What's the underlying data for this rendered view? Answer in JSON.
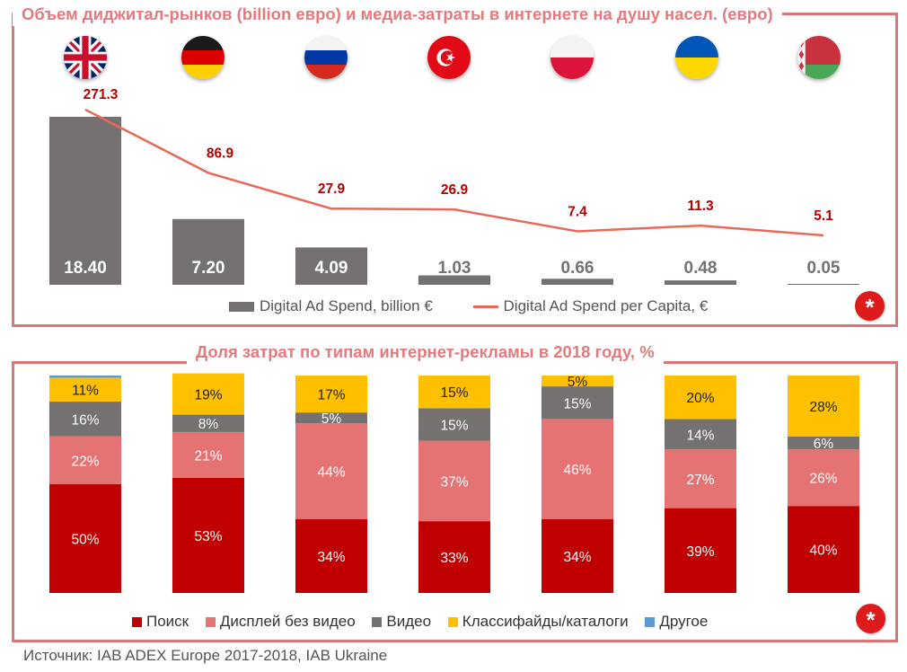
{
  "title_top": "Объем диджитал-рынков (billion евро) и медиа-затраты в интернете на душу насел. (евро)",
  "title_bottom": "Доля затрат по типам интернет-рекламы в 2018 году, %",
  "source": "Источник: IAB ADEX Europe 2017-2018, IAB Ukraine",
  "star_icon": "asterisk-icon",
  "flags": [
    "uk-flag-icon",
    "germany-flag-icon",
    "russia-flag-icon",
    "turkey-flag-icon",
    "poland-flag-icon",
    "ukraine-flag-icon",
    "belarus-flag-icon"
  ],
  "colors": {
    "bar": "#757171",
    "line": "#e8695a",
    "line_label": "#b30000",
    "poisk": "#c00000",
    "display": "#e57373",
    "video": "#767171",
    "classified": "#ffc000",
    "other": "#5b9bd5"
  },
  "chart_data": [
    {
      "type": "bar",
      "categories": [
        "",
        "",
        "",
        "",
        "",
        "",
        ""
      ],
      "series": [
        {
          "name": "Digital Ad Spend, billion €",
          "type": "bar",
          "values": [
            18.4,
            7.2,
            4.09,
            1.03,
            0.66,
            0.48,
            0.05
          ],
          "labels": [
            "18.40",
            "7.20",
            "4.09",
            "1.03",
            "0.66",
            "0.48",
            "0.05"
          ]
        },
        {
          "name": "Digital Ad Spend per Capita, €",
          "type": "line",
          "values": [
            271.3,
            86.9,
            27.9,
            26.9,
            7.4,
            11.3,
            5.1
          ],
          "labels": [
            "271.3",
            "86.9",
            "27.9",
            "26.9",
            "7.4",
            "11.3",
            "5.1"
          ]
        }
      ],
      "legend_position": "bottom"
    },
    {
      "type": "bar",
      "stacked": true,
      "categories": [
        "",
        "",
        "",
        "",
        "",
        "",
        ""
      ],
      "series": [
        {
          "name": "Поиск",
          "values": [
            50,
            53,
            34,
            33,
            34,
            39,
            40
          ],
          "labels": [
            "50%",
            "53%",
            "34%",
            "33%",
            "34%",
            "39%",
            "40%"
          ]
        },
        {
          "name": "Дисплей без видео",
          "values": [
            22,
            21,
            44,
            37,
            46,
            27,
            26
          ],
          "labels": [
            "22%",
            "21%",
            "44%",
            "37%",
            "46%",
            "27%",
            "26%"
          ]
        },
        {
          "name": "Видео",
          "values": [
            16,
            8,
            5,
            15,
            15,
            14,
            6
          ],
          "labels": [
            "16%",
            "8%",
            "5%",
            "15%",
            "15%",
            "14%",
            "6%"
          ]
        },
        {
          "name": "Классифайды/каталоги",
          "values": [
            11,
            19,
            17,
            15,
            5,
            20,
            28
          ],
          "labels": [
            "11%",
            "19%",
            "17%",
            "15%",
            "5%",
            "20%",
            "28%"
          ]
        },
        {
          "name": "Другое",
          "values": [
            1,
            0,
            0,
            0,
            0,
            0,
            0
          ],
          "labels": [
            "",
            "",
            "",
            "",
            "",
            "",
            ""
          ]
        }
      ],
      "legend_position": "bottom"
    }
  ]
}
